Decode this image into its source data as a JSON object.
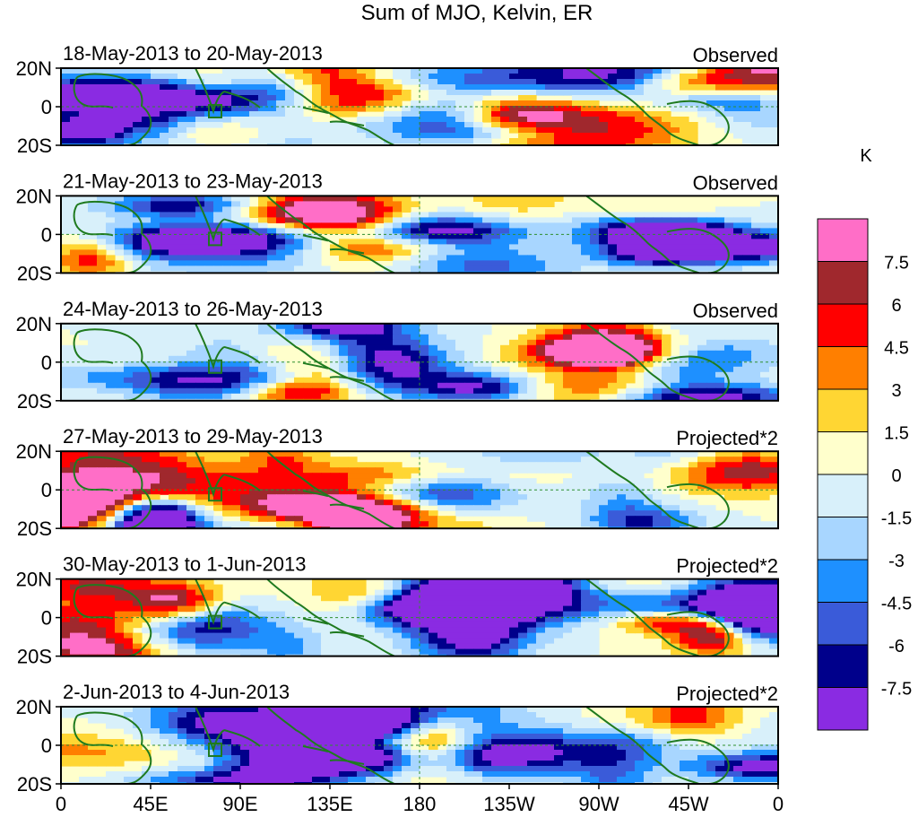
{
  "figure": {
    "title": "Sum of MJO, Kelvin, ER",
    "unit_label": "K"
  },
  "chart_data": {
    "type": "heatmap",
    "title": "Sum of MJO, Kelvin, ER",
    "colorbar": {
      "unit": "K",
      "levels": [
        "7.5",
        "6",
        "4.5",
        "3",
        "1.5",
        "0",
        "-1.5",
        "-3",
        "-4.5",
        "-6",
        "-7.5"
      ],
      "colors": [
        "#ff6ec7",
        "#a0282d",
        "#ff0000",
        "#ff7f00",
        "#ffd633",
        "#ffffcc",
        "#d8f0fa",
        "#a8d6ff",
        "#1e90ff",
        "#3a5bd9",
        "#00008b",
        "#8a2be2"
      ]
    },
    "x_ticks": [
      "0",
      "45E",
      "90E",
      "135E",
      "180",
      "135W",
      "90W",
      "45W",
      "0"
    ],
    "y_ticks": [
      "20N",
      "0",
      "20S"
    ],
    "xlim": [
      0,
      360
    ],
    "ylim": [
      -20,
      20
    ],
    "panels": [
      {
        "period": "18-May-2013 to 20-May-2013",
        "status": "Observed"
      },
      {
        "period": "21-May-2013 to 23-May-2013",
        "status": "Observed"
      },
      {
        "period": "24-May-2013 to 26-May-2013",
        "status": "Observed"
      },
      {
        "period": "27-May-2013 to 29-May-2013",
        "status": "Projected*2"
      },
      {
        "period": "30-May-2013 to 1-Jun-2013",
        "status": "Projected*2"
      },
      {
        "period": "2-Jun-2013 to 4-Jun-2013",
        "status": "Projected*2"
      }
    ]
  }
}
